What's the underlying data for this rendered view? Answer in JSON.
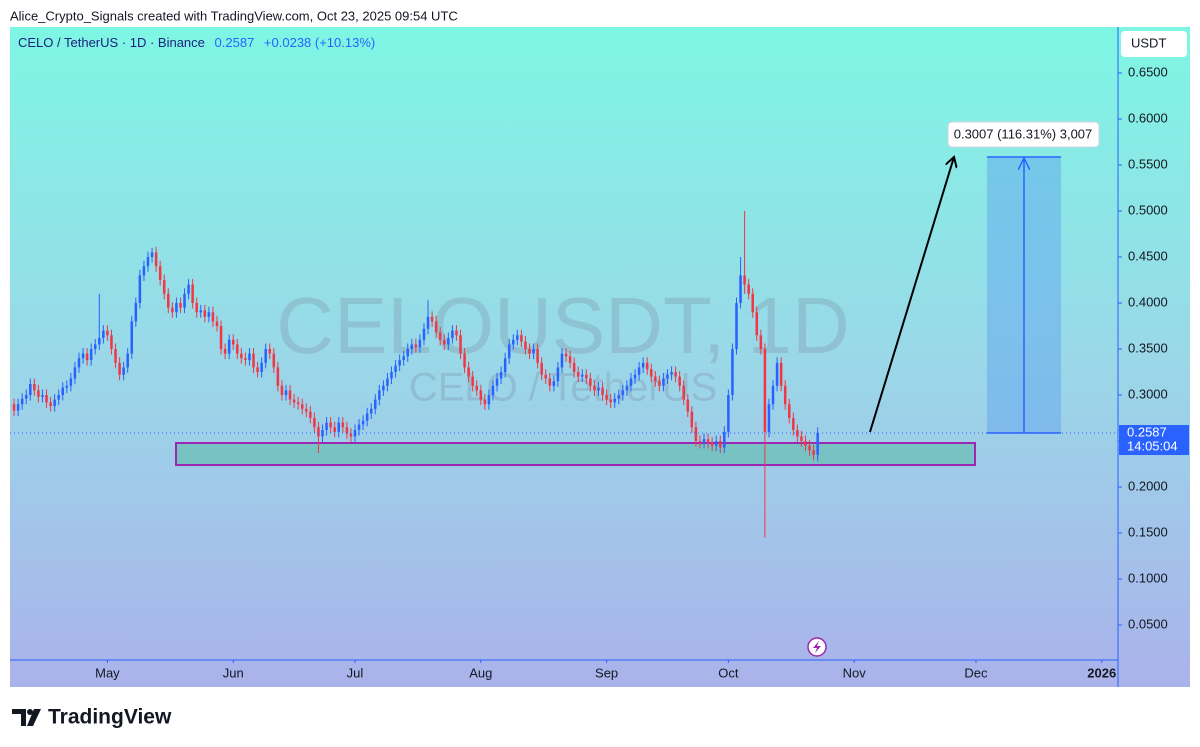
{
  "header": {
    "attribution": "Alice_Crypto_Signals created with TradingView.com, Oct 23, 2025 09:54 UTC"
  },
  "chart_data": {
    "type": "candlestick",
    "title": "CELO / TetherUS · 1D · Binance",
    "last": 0.2587,
    "change": "+0.0238 (+10.13%)",
    "watermark": [
      "CELOUSDT, 1D",
      "CELO / TetherUS"
    ],
    "y_unit": "USDT",
    "countdown": "14:05:04",
    "annotation": "0.3007 (116.31%) 3,007",
    "up_color": "#2962ff",
    "down_color": "#f23645",
    "xlim": [
      -1,
      272
    ],
    "xticks": [
      {
        "value": 23,
        "label": "May"
      },
      {
        "value": 54,
        "label": "Jun"
      },
      {
        "value": 84,
        "label": "Jul"
      },
      {
        "value": 115,
        "label": "Aug"
      },
      {
        "value": 146,
        "label": "Sep"
      },
      {
        "value": 176,
        "label": "Oct"
      },
      {
        "value": 207,
        "label": "Nov"
      },
      {
        "value": 237,
        "label": "Dec"
      },
      {
        "value": 268,
        "label": "2026"
      }
    ],
    "ylim": [
      0.012,
      0.7
    ],
    "yticks": [
      {
        "value": 0.05,
        "label": "0.0500"
      },
      {
        "value": 0.1,
        "label": "0.1000"
      },
      {
        "value": 0.15,
        "label": "0.1500"
      },
      {
        "value": 0.2,
        "label": "0.2000"
      },
      {
        "value": 0.25,
        "label": "0.2500"
      },
      {
        "value": 0.3,
        "label": "0.3000"
      },
      {
        "value": 0.35,
        "label": "0.3500"
      },
      {
        "value": 0.4,
        "label": "0.4000"
      },
      {
        "value": 0.45,
        "label": "0.4500"
      },
      {
        "value": 0.5,
        "label": "0.5000"
      },
      {
        "value": 0.55,
        "label": "0.5500"
      },
      {
        "value": 0.6,
        "label": "0.6000"
      },
      {
        "value": 0.65,
        "label": "0.6500"
      }
    ],
    "candles": [
      [
        0.29,
        0.296,
        0.277,
        0.283
      ],
      [
        0.283,
        0.296,
        0.277,
        0.29
      ],
      [
        0.29,
        0.302,
        0.284,
        0.296
      ],
      [
        0.296,
        0.306,
        0.29,
        0.3
      ],
      [
        0.3,
        0.318,
        0.294,
        0.312
      ],
      [
        0.312,
        0.318,
        0.299,
        0.305
      ],
      [
        0.305,
        0.311,
        0.292,
        0.298
      ],
      [
        0.298,
        0.306,
        0.292,
        0.3
      ],
      [
        0.3,
        0.306,
        0.286,
        0.292
      ],
      [
        0.292,
        0.298,
        0.282,
        0.288
      ],
      [
        0.288,
        0.301,
        0.282,
        0.295
      ],
      [
        0.295,
        0.306,
        0.289,
        0.3
      ],
      [
        0.3,
        0.314,
        0.294,
        0.308
      ],
      [
        0.308,
        0.316,
        0.302,
        0.31
      ],
      [
        0.31,
        0.324,
        0.304,
        0.318
      ],
      [
        0.318,
        0.336,
        0.312,
        0.33
      ],
      [
        0.33,
        0.346,
        0.324,
        0.34
      ],
      [
        0.34,
        0.351,
        0.334,
        0.345
      ],
      [
        0.345,
        0.351,
        0.332,
        0.338
      ],
      [
        0.338,
        0.356,
        0.332,
        0.35
      ],
      [
        0.35,
        0.361,
        0.344,
        0.355
      ],
      [
        0.355,
        0.41,
        0.349,
        0.362
      ],
      [
        0.362,
        0.376,
        0.356,
        0.37
      ],
      [
        0.37,
        0.376,
        0.359,
        0.365
      ],
      [
        0.365,
        0.371,
        0.344,
        0.35
      ],
      [
        0.35,
        0.356,
        0.329,
        0.335
      ],
      [
        0.335,
        0.341,
        0.316,
        0.322
      ],
      [
        0.322,
        0.336,
        0.316,
        0.33
      ],
      [
        0.33,
        0.351,
        0.324,
        0.345
      ],
      [
        0.345,
        0.386,
        0.339,
        0.38
      ],
      [
        0.38,
        0.406,
        0.374,
        0.4
      ],
      [
        0.4,
        0.436,
        0.394,
        0.43
      ],
      [
        0.43,
        0.446,
        0.424,
        0.44
      ],
      [
        0.44,
        0.456,
        0.434,
        0.45
      ],
      [
        0.45,
        0.46,
        0.444,
        0.455
      ],
      [
        0.455,
        0.461,
        0.434,
        0.44
      ],
      [
        0.44,
        0.446,
        0.419,
        0.425
      ],
      [
        0.425,
        0.431,
        0.404,
        0.41
      ],
      [
        0.41,
        0.416,
        0.389,
        0.395
      ],
      [
        0.395,
        0.401,
        0.384,
        0.39
      ],
      [
        0.39,
        0.406,
        0.384,
        0.4
      ],
      [
        0.4,
        0.406,
        0.389,
        0.395
      ],
      [
        0.395,
        0.416,
        0.389,
        0.41
      ],
      [
        0.41,
        0.426,
        0.404,
        0.42
      ],
      [
        0.42,
        0.426,
        0.394,
        0.4
      ],
      [
        0.4,
        0.406,
        0.384,
        0.39
      ],
      [
        0.39,
        0.398,
        0.384,
        0.392
      ],
      [
        0.392,
        0.398,
        0.379,
        0.385
      ],
      [
        0.385,
        0.396,
        0.379,
        0.39
      ],
      [
        0.39,
        0.396,
        0.374,
        0.38
      ],
      [
        0.38,
        0.386,
        0.369,
        0.375
      ],
      [
        0.375,
        0.381,
        0.344,
        0.35
      ],
      [
        0.35,
        0.356,
        0.339,
        0.345
      ],
      [
        0.345,
        0.366,
        0.339,
        0.36
      ],
      [
        0.36,
        0.366,
        0.349,
        0.355
      ],
      [
        0.355,
        0.361,
        0.339,
        0.345
      ],
      [
        0.345,
        0.351,
        0.334,
        0.34
      ],
      [
        0.34,
        0.346,
        0.332,
        0.338
      ],
      [
        0.338,
        0.351,
        0.332,
        0.345
      ],
      [
        0.345,
        0.351,
        0.324,
        0.33
      ],
      [
        0.33,
        0.336,
        0.319,
        0.325
      ],
      [
        0.325,
        0.341,
        0.319,
        0.335
      ],
      [
        0.335,
        0.356,
        0.329,
        0.35
      ],
      [
        0.35,
        0.356,
        0.339,
        0.345
      ],
      [
        0.345,
        0.351,
        0.324,
        0.33
      ],
      [
        0.33,
        0.336,
        0.304,
        0.31
      ],
      [
        0.31,
        0.316,
        0.294,
        0.3
      ],
      [
        0.3,
        0.311,
        0.294,
        0.305
      ],
      [
        0.305,
        0.311,
        0.289,
        0.295
      ],
      [
        0.295,
        0.301,
        0.286,
        0.292
      ],
      [
        0.292,
        0.298,
        0.284,
        0.29
      ],
      [
        0.29,
        0.296,
        0.279,
        0.285
      ],
      [
        0.285,
        0.291,
        0.276,
        0.282
      ],
      [
        0.282,
        0.288,
        0.269,
        0.275
      ],
      [
        0.275,
        0.281,
        0.259,
        0.265
      ],
      [
        0.265,
        0.271,
        0.237,
        0.255
      ],
      [
        0.255,
        0.268,
        0.249,
        0.262
      ],
      [
        0.262,
        0.276,
        0.256,
        0.27
      ],
      [
        0.27,
        0.276,
        0.259,
        0.265
      ],
      [
        0.265,
        0.271,
        0.254,
        0.26
      ],
      [
        0.26,
        0.276,
        0.254,
        0.27
      ],
      [
        0.27,
        0.276,
        0.259,
        0.265
      ],
      [
        0.265,
        0.271,
        0.252,
        0.258
      ],
      [
        0.258,
        0.264,
        0.249,
        0.255
      ],
      [
        0.255,
        0.268,
        0.249,
        0.262
      ],
      [
        0.262,
        0.274,
        0.256,
        0.268
      ],
      [
        0.268,
        0.278,
        0.262,
        0.272
      ],
      [
        0.272,
        0.286,
        0.266,
        0.28
      ],
      [
        0.28,
        0.291,
        0.274,
        0.285
      ],
      [
        0.285,
        0.301,
        0.279,
        0.295
      ],
      [
        0.295,
        0.311,
        0.289,
        0.305
      ],
      [
        0.305,
        0.316,
        0.299,
        0.31
      ],
      [
        0.31,
        0.324,
        0.304,
        0.318
      ],
      [
        0.318,
        0.331,
        0.312,
        0.325
      ],
      [
        0.325,
        0.338,
        0.319,
        0.332
      ],
      [
        0.332,
        0.344,
        0.326,
        0.338
      ],
      [
        0.338,
        0.348,
        0.332,
        0.342
      ],
      [
        0.342,
        0.356,
        0.336,
        0.35
      ],
      [
        0.35,
        0.361,
        0.344,
        0.355
      ],
      [
        0.355,
        0.361,
        0.346,
        0.352
      ],
      [
        0.352,
        0.366,
        0.346,
        0.36
      ],
      [
        0.36,
        0.378,
        0.354,
        0.372
      ],
      [
        0.372,
        0.403,
        0.366,
        0.385
      ],
      [
        0.385,
        0.391,
        0.374,
        0.38
      ],
      [
        0.38,
        0.386,
        0.362,
        0.368
      ],
      [
        0.368,
        0.374,
        0.354,
        0.36
      ],
      [
        0.36,
        0.366,
        0.349,
        0.355
      ],
      [
        0.355,
        0.368,
        0.349,
        0.362
      ],
      [
        0.362,
        0.376,
        0.356,
        0.37
      ],
      [
        0.37,
        0.376,
        0.359,
        0.365
      ],
      [
        0.365,
        0.371,
        0.339,
        0.345
      ],
      [
        0.345,
        0.351,
        0.324,
        0.33
      ],
      [
        0.33,
        0.336,
        0.314,
        0.32
      ],
      [
        0.32,
        0.326,
        0.304,
        0.31
      ],
      [
        0.31,
        0.316,
        0.299,
        0.305
      ],
      [
        0.305,
        0.311,
        0.289,
        0.295
      ],
      [
        0.295,
        0.301,
        0.284,
        0.29
      ],
      [
        0.29,
        0.306,
        0.284,
        0.3
      ],
      [
        0.3,
        0.316,
        0.294,
        0.31
      ],
      [
        0.31,
        0.324,
        0.304,
        0.318
      ],
      [
        0.318,
        0.331,
        0.312,
        0.325
      ],
      [
        0.325,
        0.346,
        0.319,
        0.34
      ],
      [
        0.34,
        0.361,
        0.334,
        0.355
      ],
      [
        0.355,
        0.366,
        0.349,
        0.36
      ],
      [
        0.36,
        0.371,
        0.354,
        0.365
      ],
      [
        0.365,
        0.371,
        0.352,
        0.358
      ],
      [
        0.358,
        0.364,
        0.344,
        0.35
      ],
      [
        0.35,
        0.356,
        0.339,
        0.345
      ],
      [
        0.345,
        0.356,
        0.339,
        0.35
      ],
      [
        0.35,
        0.356,
        0.329,
        0.335
      ],
      [
        0.335,
        0.341,
        0.316,
        0.322
      ],
      [
        0.322,
        0.328,
        0.312,
        0.318
      ],
      [
        0.318,
        0.324,
        0.304,
        0.31
      ],
      [
        0.31,
        0.321,
        0.304,
        0.315
      ],
      [
        0.315,
        0.336,
        0.309,
        0.33
      ],
      [
        0.33,
        0.351,
        0.324,
        0.345
      ],
      [
        0.345,
        0.351,
        0.336,
        0.342
      ],
      [
        0.342,
        0.348,
        0.329,
        0.335
      ],
      [
        0.335,
        0.341,
        0.319,
        0.325
      ],
      [
        0.325,
        0.331,
        0.314,
        0.32
      ],
      [
        0.32,
        0.328,
        0.314,
        0.322
      ],
      [
        0.322,
        0.328,
        0.312,
        0.318
      ],
      [
        0.318,
        0.324,
        0.304,
        0.31
      ],
      [
        0.31,
        0.316,
        0.299,
        0.305
      ],
      [
        0.305,
        0.314,
        0.299,
        0.308
      ],
      [
        0.308,
        0.314,
        0.294,
        0.3
      ],
      [
        0.3,
        0.306,
        0.289,
        0.295
      ],
      [
        0.295,
        0.301,
        0.286,
        0.292
      ],
      [
        0.292,
        0.302,
        0.286,
        0.296
      ],
      [
        0.296,
        0.306,
        0.29,
        0.3
      ],
      [
        0.3,
        0.311,
        0.294,
        0.305
      ],
      [
        0.305,
        0.316,
        0.299,
        0.31
      ],
      [
        0.31,
        0.324,
        0.304,
        0.318
      ],
      [
        0.318,
        0.328,
        0.312,
        0.322
      ],
      [
        0.322,
        0.336,
        0.316,
        0.33
      ],
      [
        0.33,
        0.341,
        0.324,
        0.335
      ],
      [
        0.335,
        0.341,
        0.322,
        0.328
      ],
      [
        0.328,
        0.334,
        0.314,
        0.32
      ],
      [
        0.32,
        0.326,
        0.309,
        0.315
      ],
      [
        0.315,
        0.321,
        0.304,
        0.31
      ],
      [
        0.31,
        0.324,
        0.304,
        0.318
      ],
      [
        0.318,
        0.328,
        0.312,
        0.322
      ],
      [
        0.322,
        0.331,
        0.316,
        0.325
      ],
      [
        0.325,
        0.331,
        0.314,
        0.32
      ],
      [
        0.32,
        0.326,
        0.304,
        0.31
      ],
      [
        0.31,
        0.316,
        0.289,
        0.295
      ],
      [
        0.295,
        0.301,
        0.276,
        0.282
      ],
      [
        0.282,
        0.288,
        0.259,
        0.265
      ],
      [
        0.265,
        0.271,
        0.244,
        0.25
      ],
      [
        0.25,
        0.256,
        0.242,
        0.248
      ],
      [
        0.248,
        0.258,
        0.242,
        0.252
      ],
      [
        0.252,
        0.258,
        0.242,
        0.248
      ],
      [
        0.248,
        0.254,
        0.239,
        0.245
      ],
      [
        0.245,
        0.256,
        0.239,
        0.25
      ],
      [
        0.25,
        0.256,
        0.237,
        0.243
      ],
      [
        0.243,
        0.266,
        0.237,
        0.26
      ],
      [
        0.26,
        0.306,
        0.254,
        0.3
      ],
      [
        0.3,
        0.356,
        0.294,
        0.35
      ],
      [
        0.35,
        0.406,
        0.344,
        0.4
      ],
      [
        0.4,
        0.45,
        0.394,
        0.43
      ],
      [
        0.43,
        0.5,
        0.41,
        0.42
      ],
      [
        0.42,
        0.426,
        0.404,
        0.41
      ],
      [
        0.41,
        0.416,
        0.384,
        0.39
      ],
      [
        0.39,
        0.396,
        0.359,
        0.365
      ],
      [
        0.365,
        0.371,
        0.344,
        0.35
      ],
      [
        0.35,
        0.356,
        0.145,
        0.26
      ],
      [
        0.26,
        0.296,
        0.254,
        0.29
      ],
      [
        0.29,
        0.316,
        0.284,
        0.31
      ],
      [
        0.31,
        0.341,
        0.304,
        0.335
      ],
      [
        0.335,
        0.341,
        0.304,
        0.31
      ],
      [
        0.31,
        0.316,
        0.284,
        0.29
      ],
      [
        0.29,
        0.296,
        0.269,
        0.275
      ],
      [
        0.275,
        0.281,
        0.256,
        0.262
      ],
      [
        0.262,
        0.268,
        0.249,
        0.255
      ],
      [
        0.255,
        0.261,
        0.244,
        0.25
      ],
      [
        0.25,
        0.256,
        0.239,
        0.245
      ],
      [
        0.245,
        0.251,
        0.234,
        0.24
      ],
      [
        0.24,
        0.246,
        0.229,
        0.235
      ],
      [
        0.235,
        0.265,
        0.228,
        0.2587
      ]
    ]
  },
  "footer": {
    "brand": "TradingView"
  }
}
